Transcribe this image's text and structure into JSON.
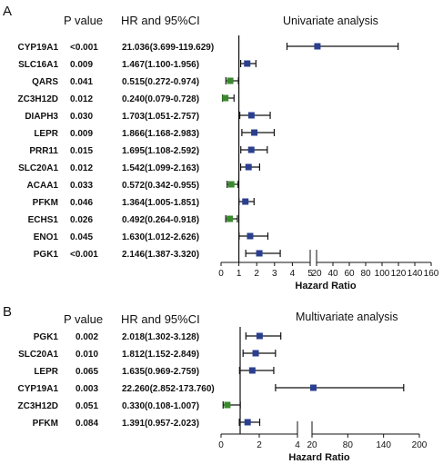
{
  "colors": {
    "risk": "#2b3f8f",
    "protective": "#3a8a2e",
    "line": "#111111"
  },
  "chart_data": [
    {
      "type": "forest",
      "panel_label": "A",
      "title": "Univariate analysis",
      "col_pvalue": "P value",
      "col_hr": "HR and 95%CI",
      "xlabel": "Hazard Ratio",
      "reference_line": 1,
      "axis_segments": [
        {
          "range": [
            0,
            5
          ],
          "ticks": [
            "0",
            "1",
            "2",
            "3",
            "4",
            "5"
          ]
        },
        {
          "range": [
            20,
            160
          ],
          "ticks": [
            "20",
            "40",
            "60",
            "80",
            "100",
            "120",
            "140",
            "160"
          ]
        }
      ],
      "rows": [
        {
          "gene": "CYP19A1",
          "p": "<0.001",
          "hr_text": "21.036(3.699-119.629)",
          "hr": 21.036,
          "lo": 3.699,
          "hi": 119.629
        },
        {
          "gene": "SLC16A1",
          "p": "0.009",
          "hr_text": "1.467(1.100-1.956)",
          "hr": 1.467,
          "lo": 1.1,
          "hi": 1.956
        },
        {
          "gene": "QARS",
          "p": "0.041",
          "hr_text": "0.515(0.272-0.974)",
          "hr": 0.515,
          "lo": 0.272,
          "hi": 0.974
        },
        {
          "gene": "ZC3H12D",
          "p": "0.012",
          "hr_text": "0.240(0.079-0.728)",
          "hr": 0.24,
          "lo": 0.079,
          "hi": 0.728
        },
        {
          "gene": "DIAPH3",
          "p": "0.030",
          "hr_text": "1.703(1.051-2.757)",
          "hr": 1.703,
          "lo": 1.051,
          "hi": 2.757
        },
        {
          "gene": "LEPR",
          "p": "0.009",
          "hr_text": "1.866(1.168-2.983)",
          "hr": 1.866,
          "lo": 1.168,
          "hi": 2.983
        },
        {
          "gene": "PRR11",
          "p": "0.015",
          "hr_text": "1.695(1.108-2.592)",
          "hr": 1.695,
          "lo": 1.108,
          "hi": 2.592
        },
        {
          "gene": "SLC20A1",
          "p": "0.012",
          "hr_text": "1.542(1.099-2.163)",
          "hr": 1.542,
          "lo": 1.099,
          "hi": 2.163
        },
        {
          "gene": "ACAA1",
          "p": "0.033",
          "hr_text": "0.572(0.342-0.955)",
          "hr": 0.572,
          "lo": 0.342,
          "hi": 0.955
        },
        {
          "gene": "PFKM",
          "p": "0.046",
          "hr_text": "1.364(1.005-1.851)",
          "hr": 1.364,
          "lo": 1.005,
          "hi": 1.851
        },
        {
          "gene": "ECHS1",
          "p": "0.026",
          "hr_text": "0.492(0.264-0.918)",
          "hr": 0.492,
          "lo": 0.264,
          "hi": 0.918
        },
        {
          "gene": "ENO1",
          "p": "0.045",
          "hr_text": "1.630(1.012-2.626)",
          "hr": 1.63,
          "lo": 1.012,
          "hi": 2.626
        },
        {
          "gene": "PGK1",
          "p": "<0.001",
          "hr_text": "2.146(1.387-3.320)",
          "hr": 2.146,
          "lo": 1.387,
          "hi": 3.32
        }
      ]
    },
    {
      "type": "forest",
      "panel_label": "B",
      "title": "Multivariate analysis",
      "col_pvalue": "P value",
      "col_hr": "HR and 95%CI",
      "xlabel": "Hazard Ratio",
      "reference_line": 1,
      "axis_segments": [
        {
          "range": [
            0,
            4
          ],
          "ticks": [
            "0",
            "2",
            "4"
          ]
        },
        {
          "range": [
            20,
            200
          ],
          "ticks": [
            "20",
            "80",
            "140",
            "200"
          ]
        }
      ],
      "rows": [
        {
          "gene": "PGK1",
          "p": "0.002",
          "hr_text": "2.018(1.302-3.128)",
          "hr": 2.018,
          "lo": 1.302,
          "hi": 3.128
        },
        {
          "gene": "SLC20A1",
          "p": "0.010",
          "hr_text": "1.812(1.152-2.849)",
          "hr": 1.812,
          "lo": 1.152,
          "hi": 2.849
        },
        {
          "gene": "LEPR",
          "p": "0.065",
          "hr_text": "1.635(0.969-2.759)",
          "hr": 1.635,
          "lo": 0.969,
          "hi": 2.759
        },
        {
          "gene": "CYP19A1",
          "p": "0.003",
          "hr_text": "22.260(2.852-173.760)",
          "hr": 22.26,
          "lo": 2.852,
          "hi": 173.76
        },
        {
          "gene": "ZC3H12D",
          "p": "0.051",
          "hr_text": "0.330(0.108-1.007)",
          "hr": 0.33,
          "lo": 0.108,
          "hi": 1.007
        },
        {
          "gene": "PFKM",
          "p": "0.084",
          "hr_text": "1.391(0.957-2.023)",
          "hr": 1.391,
          "lo": 0.957,
          "hi": 2.023
        }
      ]
    }
  ]
}
